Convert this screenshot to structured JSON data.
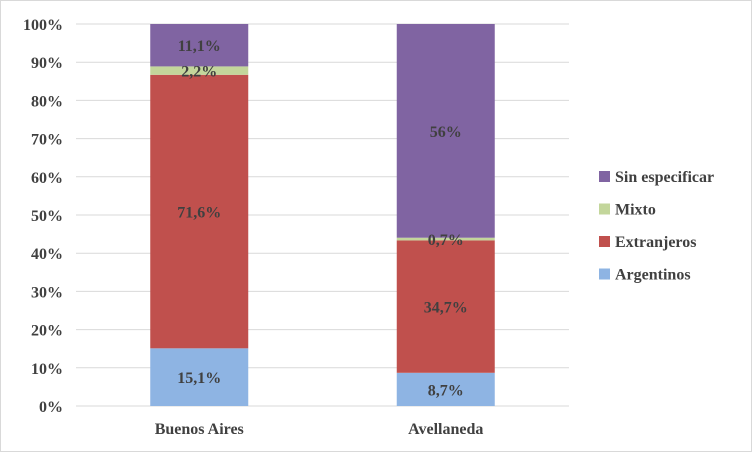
{
  "chart_data": {
    "type": "bar",
    "stacked": true,
    "percent": true,
    "categories": [
      "Buenos Aires",
      "Avellaneda"
    ],
    "series": [
      {
        "name": "Argentinos",
        "values": [
          15.1,
          8.7
        ],
        "labels": [
          "15,1%",
          "8,7%"
        ],
        "color": "#8eb4e3"
      },
      {
        "name": "Extranjeros",
        "values": [
          71.6,
          34.7
        ],
        "labels": [
          "71,6%",
          "34,7%"
        ],
        "color": "#c0504d"
      },
      {
        "name": "Mixto",
        "values": [
          2.2,
          0.7
        ],
        "labels": [
          "2,2%",
          "0,7%"
        ],
        "color": "#c3d69b"
      },
      {
        "name": "Sin especificar",
        "values": [
          11.1,
          56
        ],
        "labels": [
          "11,1%",
          "56%"
        ],
        "color": "#8064a2"
      }
    ],
    "ylim": [
      0,
      100
    ],
    "yticks": [
      "0%",
      "10%",
      "20%",
      "30%",
      "40%",
      "50%",
      "60%",
      "70%",
      "80%",
      "90%",
      "100%"
    ],
    "grid": true,
    "legend": "right",
    "title": "",
    "xlabel": "",
    "ylabel": ""
  }
}
